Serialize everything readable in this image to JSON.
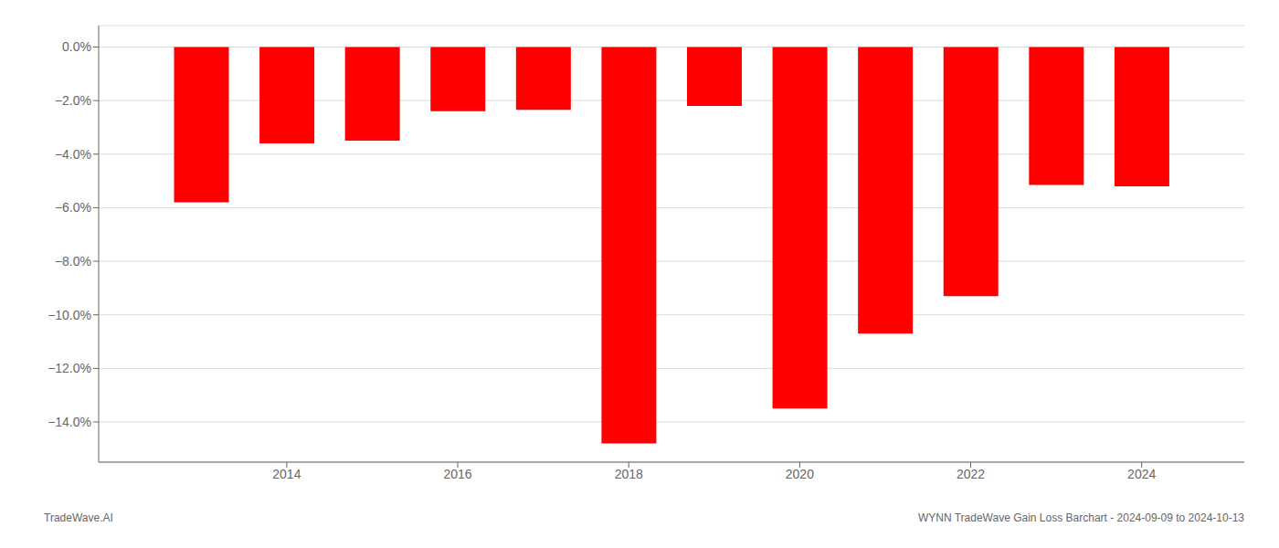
{
  "chart_data": {
    "type": "bar",
    "x": [
      2013,
      2014,
      2015,
      2016,
      2017,
      2018,
      2019,
      2020,
      2021,
      2022,
      2023,
      2024
    ],
    "values": [
      -5.8,
      -3.6,
      -3.5,
      -2.4,
      -2.35,
      -14.8,
      -2.2,
      -13.5,
      -10.7,
      -9.3,
      -5.15,
      -5.2
    ],
    "color": "#ff0000",
    "xlim": [
      2011.8,
      2025.2
    ],
    "xticks": [
      2014,
      2016,
      2018,
      2020,
      2022,
      2024
    ],
    "ylim": [
      -15.5,
      0.8
    ],
    "yticks": [
      {
        "value": 0.0,
        "label": "0.0%"
      },
      {
        "value": -2.0,
        "label": "−2.0%"
      },
      {
        "value": -4.0,
        "label": "−4.0%"
      },
      {
        "value": -6.0,
        "label": "−6.0%"
      },
      {
        "value": -8.0,
        "label": "−8.0%"
      },
      {
        "value": -10.0,
        "label": "−10.0%"
      },
      {
        "value": -12.0,
        "label": "−12.0%"
      },
      {
        "value": -14.0,
        "label": "−14.0%"
      }
    ],
    "grid": true,
    "annotations": [
      "TradeWave.AI",
      "WYNN TradeWave Gain Loss Barchart - 2024-09-09 to 2024-10-13"
    ]
  }
}
